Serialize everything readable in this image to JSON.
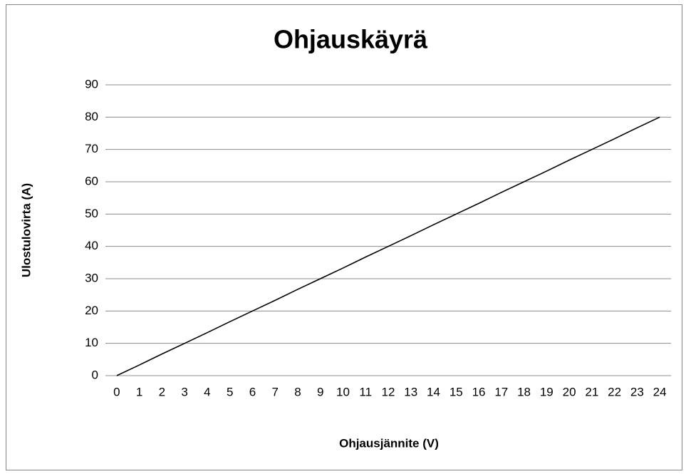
{
  "chart_data": {
    "type": "line",
    "title": "Ohjauskäyrä",
    "x_label": "Ohjausjännite (V)",
    "y_label": "Ulostulovirta (A)",
    "categories": [
      "0",
      "1",
      "2",
      "3",
      "4",
      "5",
      "6",
      "7",
      "8",
      "9",
      "10",
      "11",
      "12",
      "13",
      "14",
      "15",
      "16",
      "17",
      "18",
      "19",
      "20",
      "21",
      "22",
      "23",
      "24"
    ],
    "series": [
      {
        "name": "Ulostulovirta",
        "color": "#000000",
        "values": [
          0,
          3.3,
          6.7,
          10,
          13.3,
          16.7,
          20,
          23.3,
          26.7,
          30,
          33.3,
          36.7,
          40,
          43.3,
          46.7,
          50,
          53.3,
          56.7,
          60,
          63.3,
          66.7,
          70,
          73.3,
          76.7,
          80
        ]
      }
    ],
    "ylim": [
      0,
      90
    ],
    "yticks": [
      0,
      10,
      20,
      30,
      40,
      50,
      60,
      70,
      80,
      90
    ],
    "grid": true
  }
}
